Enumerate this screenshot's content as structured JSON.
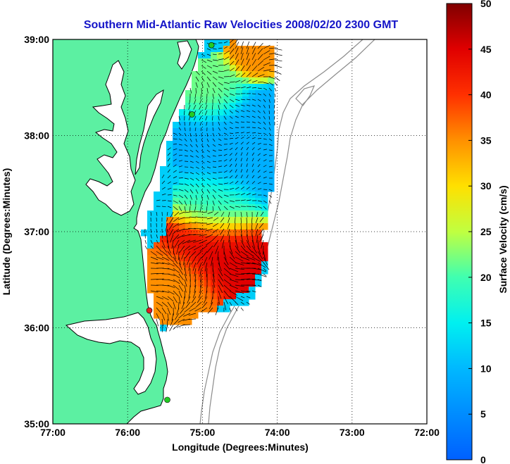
{
  "chart_data": {
    "type": "heatmap",
    "title": "Southern Mid-Atlantic Raw Velocities 2008/02/20 2300 GMT",
    "xlabel": "Longitude (Degrees:Minutes)",
    "ylabel": "Latitude (Degrees:Minutes)",
    "x_ticks": [
      "77:00",
      "76:00",
      "75:00",
      "74:00",
      "73:00",
      "72:00"
    ],
    "y_ticks": [
      "39:00",
      "38:00",
      "37:00",
      "36:00",
      "35:00"
    ],
    "xlim": [
      -77,
      -72
    ],
    "ylim": [
      35,
      39
    ],
    "grid": true,
    "colorbar": {
      "label": "Surface Velocity (cm/s)",
      "range": [
        0,
        50
      ],
      "ticks": [
        "50",
        "45",
        "40",
        "35",
        "30",
        "25",
        "20",
        "15",
        "10",
        "5",
        "0"
      ]
    },
    "colors": {
      "land": "#5cf0a2",
      "coast": "#000000",
      "bathymetry": "#8c8c8c",
      "grid": "#000000",
      "title": "#1414c8"
    },
    "stations": [
      {
        "lon": -74.88,
        "lat": 38.94,
        "color": "#22cc22"
      },
      {
        "lon": -75.14,
        "lat": 38.22,
        "color": "#22cc22"
      },
      {
        "lon": -75.71,
        "lat": 36.18,
        "color": "#e02020"
      },
      {
        "lon": -75.47,
        "lat": 35.25,
        "color": "#22cc22"
      }
    ],
    "speed_regions": [
      {
        "lon": -74.84,
        "lat": 36.82,
        "radius_deg": 0.35,
        "speed": 45
      },
      {
        "lon": -75.3,
        "lat": 36.45,
        "radius_deg": 0.3,
        "speed": 35
      },
      {
        "lon": -74.3,
        "lat": 38.85,
        "radius_deg": 0.2,
        "speed": 35
      },
      {
        "lon": -74.85,
        "lat": 38.45,
        "radius_deg": 0.25,
        "speed": 22
      },
      {
        "lon": -74.5,
        "lat": 37.9,
        "radius_deg": 0.45,
        "speed": 9
      },
      {
        "lon": -74.8,
        "lat": 37.25,
        "radius_deg": 0.3,
        "speed": 18
      }
    ]
  }
}
